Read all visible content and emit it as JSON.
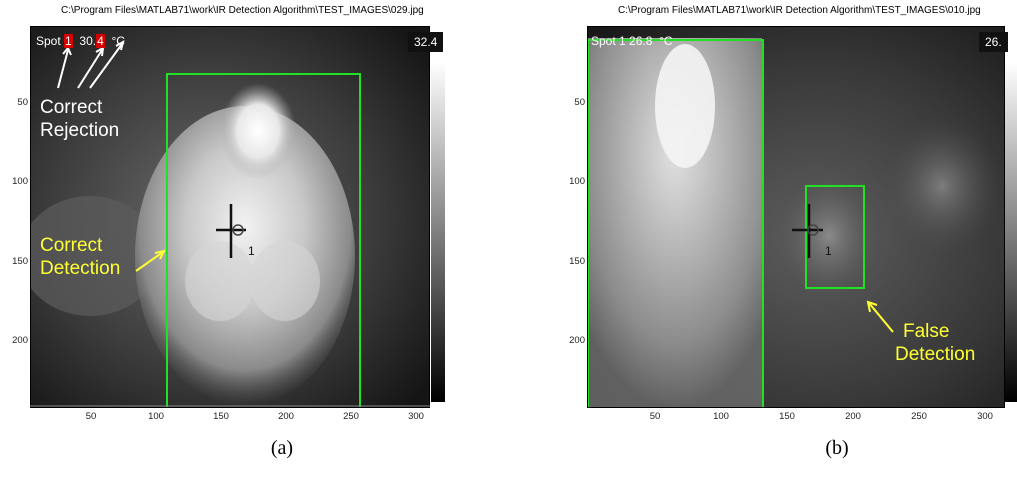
{
  "panel_a": {
    "path": "C:\\Program Files\\MATLAB71\\work\\IR Detection Algorithm\\TEST_IMAGES\\029.jpg",
    "spot_label": "Spot",
    "spot_index": "1",
    "spot_value_main": "30.",
    "spot_value_digit": "4",
    "unit_degree": "°",
    "unit_c": "C",
    "bar_value": "32.4",
    "target_label": "1",
    "callout_rejection_line1": "Correct",
    "callout_rejection_line2": "Rejection",
    "callout_detection_line1": "Correct",
    "callout_detection_line2": "Detection",
    "subfigure": "(a)"
  },
  "panel_b": {
    "path": "C:\\Program Files\\MATLAB71\\work\\IR Detection Algorithm\\TEST_IMAGES\\010.jpg",
    "spot_text": "Spot 1   26.8",
    "unit": "°C",
    "bar_value": "26.",
    "target_label": "1",
    "callout_line1": "False",
    "callout_line2": "Detection",
    "subfigure": "(b)"
  },
  "axes": {
    "y_ticks": [
      "50",
      "100",
      "150",
      "200"
    ],
    "x_ticks": [
      "50",
      "100",
      "150",
      "200",
      "250",
      "300"
    ]
  },
  "colors": {
    "box": "#22e022",
    "callout_yellow": "#ffff33",
    "callout_white": "#ffffff",
    "spot_highlight": "#d40000"
  }
}
